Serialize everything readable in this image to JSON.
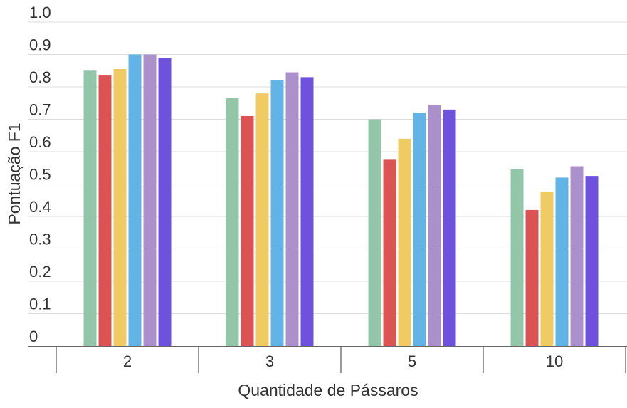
{
  "chart_data": {
    "type": "bar",
    "title": "",
    "xlabel": "Quantidade de Pássaros",
    "ylabel": "Pontuação F1",
    "categories": [
      "2",
      "3",
      "5",
      "10"
    ],
    "ylim": [
      0,
      1.0
    ],
    "yticks": [
      "0",
      "0.1",
      "0.2",
      "0.3",
      "0.4",
      "0.5",
      "0.6",
      "0.7",
      "0.8",
      "0.9",
      "1.0"
    ],
    "grid": true,
    "legend": "none",
    "series": [
      {
        "color": "#93c5a8",
        "values": [
          0.85,
          0.765,
          0.7,
          0.545
        ]
      },
      {
        "color": "#dc5353",
        "values": [
          0.835,
          0.71,
          0.575,
          0.42
        ]
      },
      {
        "color": "#f0cb64",
        "values": [
          0.855,
          0.78,
          0.64,
          0.475
        ]
      },
      {
        "color": "#63b4e6",
        "values": [
          0.9,
          0.82,
          0.72,
          0.52
        ]
      },
      {
        "color": "#ab90cb",
        "values": [
          0.9,
          0.845,
          0.745,
          0.555
        ]
      },
      {
        "color": "#6e52dd",
        "values": [
          0.89,
          0.83,
          0.73,
          0.525
        ]
      }
    ]
  }
}
